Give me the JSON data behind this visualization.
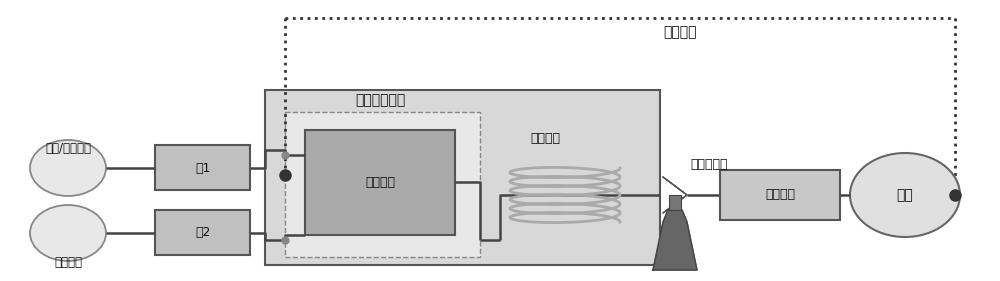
{
  "bg_color": "#ffffff",
  "labels": {
    "raw_material": {
      "text": "原料/确酸溶液",
      "fontsize": 8.5
    },
    "nitro_acid": {
      "text": "硭确混酸",
      "fontsize": 8.5
    },
    "pump1": {
      "text": "泵1",
      "fontsize": 9
    },
    "pump2": {
      "text": "泵2",
      "fontsize": 9
    },
    "temp_control": {
      "text": "温度控制模块",
      "fontsize": 10
    },
    "micro_mixer": {
      "text": "微混合器",
      "fontsize": 9
    },
    "residence_coil": {
      "text": "停留线圈",
      "fontsize": 9
    },
    "back_pressure": {
      "text": "背压调节阀",
      "fontsize": 9
    },
    "sep_module": {
      "text": "分离模块",
      "fontsize": 9
    },
    "product": {
      "text": "产物",
      "fontsize": 10
    },
    "flow_control": {
      "text": "流速控制",
      "fontsize": 10
    }
  }
}
